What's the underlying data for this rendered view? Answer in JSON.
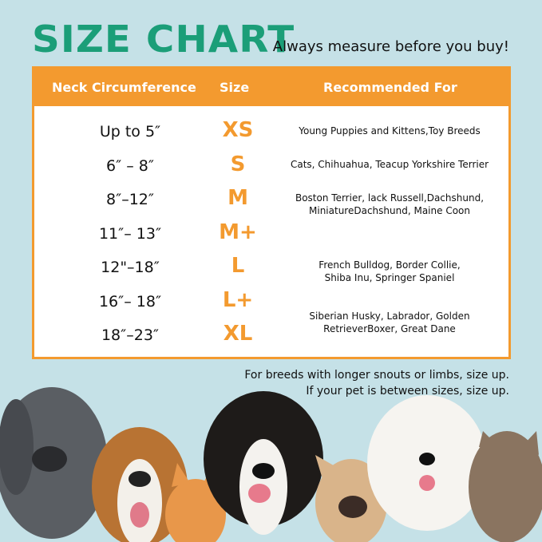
{
  "title": "SIZE CHART",
  "tagline": "Always measure before you buy!",
  "headers": {
    "neck": "Neck Circumference",
    "size": "Size",
    "rec": "Recommended For"
  },
  "rows": [
    {
      "neck": "Up to 5″",
      "size": "XS"
    },
    {
      "neck": "6″ – 8″",
      "size": "S"
    },
    {
      "neck": "8″–12″",
      "size": "M"
    },
    {
      "neck": "11″– 13″",
      "size": "M+"
    },
    {
      "neck": "12\"–18″",
      "size": "L"
    },
    {
      "neck": "16″– 18″",
      "size": "L+"
    },
    {
      "neck": "18″–23″",
      "size": "XL"
    }
  ],
  "recommendations": [
    {
      "line1": "Young Puppies and Kittens,Toy Breeds"
    },
    {
      "line1": "Cats, Chihuahua, Teacup Yorkshire Terrier"
    },
    {
      "line1": "Boston Terrier, lack Russell,Dachshund,",
      "line2": "MiniatureDachshund, Maine Coon"
    },
    {
      "line1": "French Bulldog, Border Collie,",
      "line2": "Shiba Inu, Springer Spaniel"
    },
    {
      "line1": "Siberian Husky, Labrador, Golden",
      "line2": "RetrieverBoxer, Great Dane"
    }
  ],
  "footer": {
    "line1": "For breeds with longer snouts or limbs, size up.",
    "line2": "If your pet is between sizes, size up."
  },
  "colors": {
    "background": "#c5e1e7",
    "title": "#1b9e78",
    "accent": "#f39a2f"
  }
}
